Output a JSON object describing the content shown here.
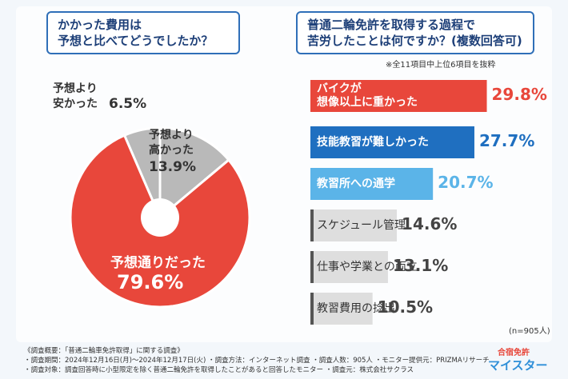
{
  "chart_data": [
    {
      "type": "pie",
      "title": "かかった費用は\n予想と比べてどうでしたか？",
      "categories": [
        "予想より\n安かった",
        "予想より\n高かった",
        "予想通りだった"
      ],
      "values": [
        6.5,
        13.9,
        79.6
      ],
      "value_labels": [
        "6.5%",
        "13.9%",
        "79.6%"
      ],
      "colors": [
        "#b9b9b9",
        "#b9b9b9",
        "#e8473b"
      ]
    },
    {
      "type": "barh",
      "title": "普通二輪免許を取得する過程で\n苦労したことは何ですか？(複数回答可)",
      "subtitle": "※全11項目中上位6項目を抜粋",
      "categories": [
        "バイクが\n想像以上に重かった",
        "技能教習が難しかった",
        "教習所への通学",
        "スケジュール管理",
        "仕事や学業との両立",
        "教習費用の捻出"
      ],
      "values": [
        29.8,
        27.7,
        20.7,
        14.6,
        13.1,
        10.5
      ],
      "value_labels": [
        "29.8%",
        "27.7%",
        "20.7%",
        "14.6%",
        "13.1%",
        "10.5%"
      ],
      "colors": [
        "#e8473b",
        "#1f6fc0",
        "#5bb4e8",
        "#dedede",
        "#dedede",
        "#dedede"
      ],
      "annotation": "(n=905人)"
    }
  ],
  "footnotes": [
    "《調査概要：「普通二輪車免許取得」に関する調査》",
    "・調査期間：2024年12月16日(月)〜2024年12月17日(火) ・調査方法：インターネット調査 ・調査人数：905人 ・モニター提供元：PRIZMAリサーチ",
    "・調査対象：調査回答時に小型限定を除く普通二輪免許を取得したことがあると回答したモニター ・調査元：株式会社サクラス"
  ],
  "logo": {
    "top": "合宿免許",
    "bottom": "マイスター"
  }
}
